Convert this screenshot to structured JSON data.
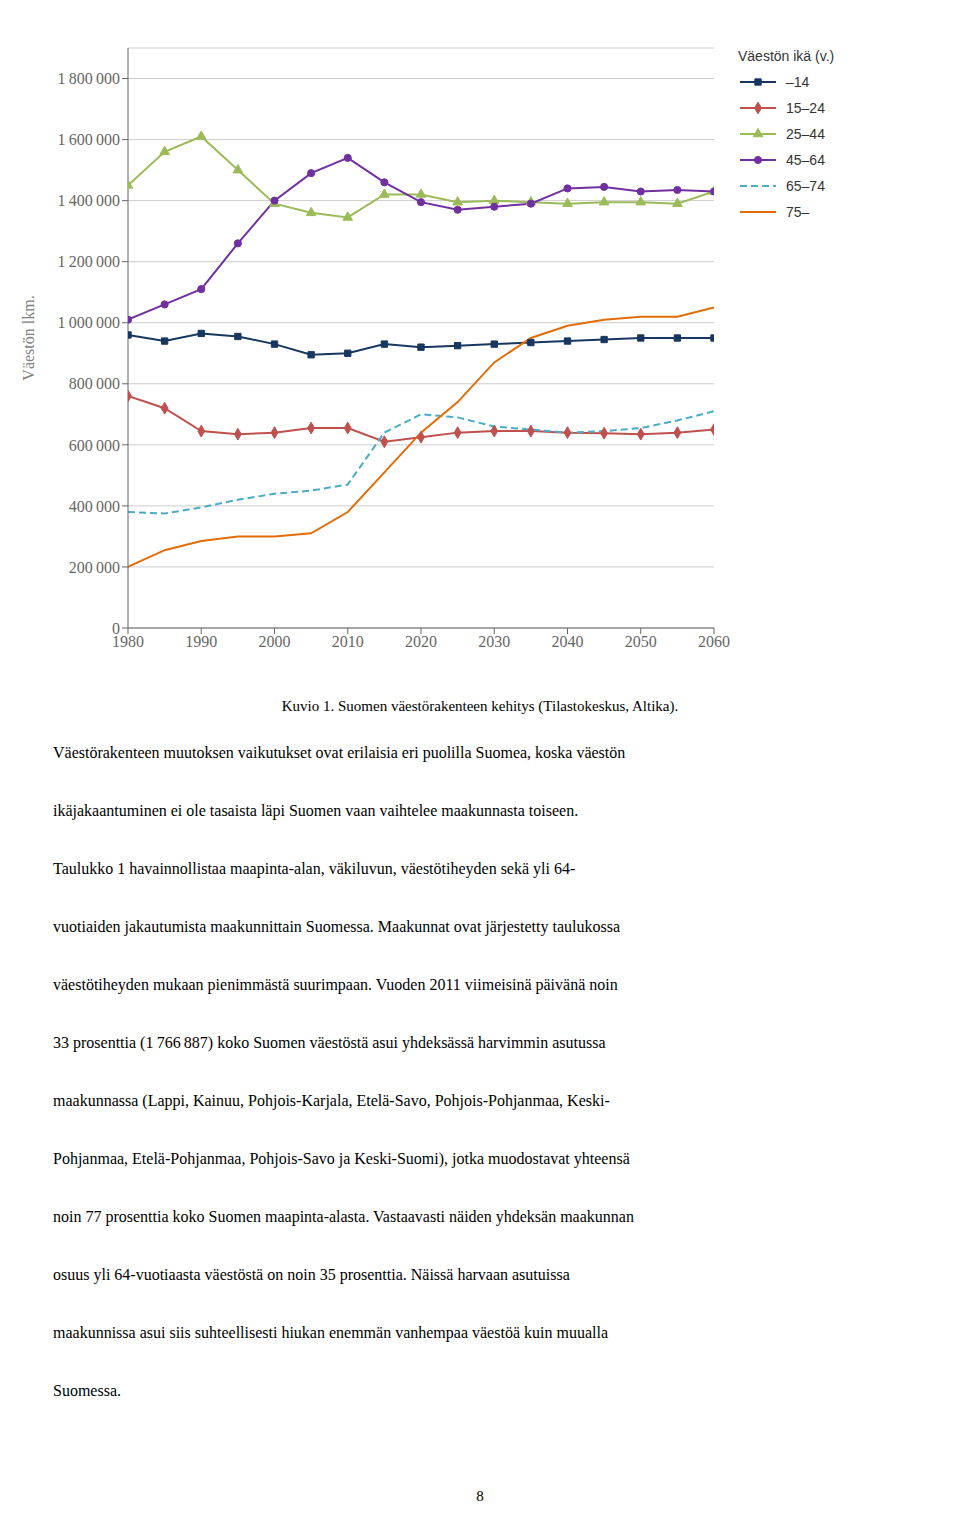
{
  "chart_data": {
    "type": "line",
    "title": "Kuvio 1. Suomen väestörakenteen kehitys (Tilastokeskus, Altika).",
    "y_label": "Väestön lkm.",
    "legend_title": "Väestön ikä (v.)",
    "legend": "right",
    "grid": true,
    "x": [
      1980,
      1985,
      1990,
      1995,
      2000,
      2005,
      2010,
      2015,
      2020,
      2025,
      2030,
      2035,
      2040,
      2045,
      2050,
      2055,
      2060
    ],
    "xlim": [
      1980,
      2060
    ],
    "xticks": [
      1980,
      1990,
      2000,
      2010,
      2020,
      2030,
      2040,
      2050,
      2060
    ],
    "ylim": [
      0,
      1900000
    ],
    "yticks": [
      0,
      {
        "value": 200000,
        "label": "200 000"
      },
      {
        "value": 400000,
        "label": "400 000"
      },
      {
        "value": 600000,
        "label": "600 000"
      },
      {
        "value": 800000,
        "label": "800 000"
      },
      {
        "value": 1000000,
        "label": "1 000 000"
      },
      {
        "value": 1200000,
        "label": "1 200 000"
      },
      {
        "value": 1400000,
        "label": "1 400 000"
      },
      {
        "value": 1600000,
        "label": "1 600 000"
      },
      {
        "value": 1800000,
        "label": "1 800 000"
      }
    ],
    "series": [
      {
        "name": "–14",
        "color": "#17375e",
        "line_style": "solid",
        "marker": "square",
        "values": [
          960000,
          940000,
          965000,
          955000,
          930000,
          895000,
          900000,
          930000,
          920000,
          925000,
          930000,
          935000,
          940000,
          945000,
          950000,
          950000,
          950000
        ]
      },
      {
        "name": "15–24",
        "color": "#c0504d",
        "line_style": "solid",
        "marker": "diamond",
        "values": [
          760000,
          720000,
          645000,
          635000,
          640000,
          655000,
          655000,
          610000,
          625000,
          640000,
          645000,
          645000,
          640000,
          638000,
          635000,
          640000,
          650000
        ]
      },
      {
        "name": "25–44",
        "color": "#9bbb59",
        "line_style": "solid",
        "marker": "triangle",
        "values": [
          1450000,
          1560000,
          1610000,
          1500000,
          1390000,
          1360000,
          1345000,
          1420000,
          1420000,
          1395000,
          1400000,
          1395000,
          1390000,
          1395000,
          1395000,
          1390000,
          1430000
        ]
      },
      {
        "name": "45–64",
        "color": "#7030a0",
        "line_style": "solid",
        "marker": "circle",
        "values": [
          1010000,
          1060000,
          1110000,
          1260000,
          1400000,
          1490000,
          1540000,
          1460000,
          1395000,
          1370000,
          1380000,
          1390000,
          1440000,
          1445000,
          1430000,
          1435000,
          1430000
        ]
      },
      {
        "name": "65–74",
        "color": "#4bacc6",
        "line_style": "dashed",
        "marker": null,
        "values": [
          380000,
          375000,
          395000,
          420000,
          440000,
          450000,
          470000,
          640000,
          700000,
          690000,
          660000,
          650000,
          640000,
          645000,
          655000,
          680000,
          710000
        ]
      },
      {
        "name": "75–",
        "color": "#e36c09",
        "line_style": "solid",
        "marker": null,
        "values": [
          200000,
          255000,
          285000,
          300000,
          300000,
          310000,
          380000,
          510000,
          640000,
          740000,
          870000,
          950000,
          990000,
          1010000,
          1020000,
          1020000,
          1050000
        ]
      }
    ],
    "annotations": [
      "Väestörakenteen muutoksen vaikutukset ovat erilaisia eri puolilla Suomea, koska väestön",
      "ikäjakaantuminen ei ole tasaista läpi Suomen vaan vaihtelee maakunnasta toiseen.",
      "Taulukko 1 havainnollistaa maapinta-alan, väkiluvun, väestötiheyden sekä yli 64-",
      "vuotiaiden jakautumista maakunnittain Suomessa. Maakunnat ovat järjestetty taulukossa",
      "väestötiheyden mukaan pienimmästä suurimpaan. Vuoden 2011 viimeisinä päivänä noin",
      "33 prosenttia (1 766 887) koko Suomen väestöstä asui yhdeksässä harvimmin asutussa",
      "maakunnassa (Lappi, Kainuu, Pohjois-Karjala, Etelä-Savo, Pohjois-Pohjanmaa, Keski-",
      "Pohjanmaa, Etelä-Pohjanmaa, Pohjois-Savo ja Keski-Suomi), jotka muodostavat yhteensä",
      "noin 77 prosenttia koko Suomen maapinta-alasta. Vastaavasti näiden yhdeksän maakunnan",
      "osuus yli 64-vuotiaasta väestöstä on noin 35 prosenttia. Näissä harvaan asutuissa",
      "maakunnissa asui siis suhteellisesti hiukan enemmän vanhempaa väestöä kuin muualla",
      "Suomessa."
    ],
    "page_number": "8"
  }
}
